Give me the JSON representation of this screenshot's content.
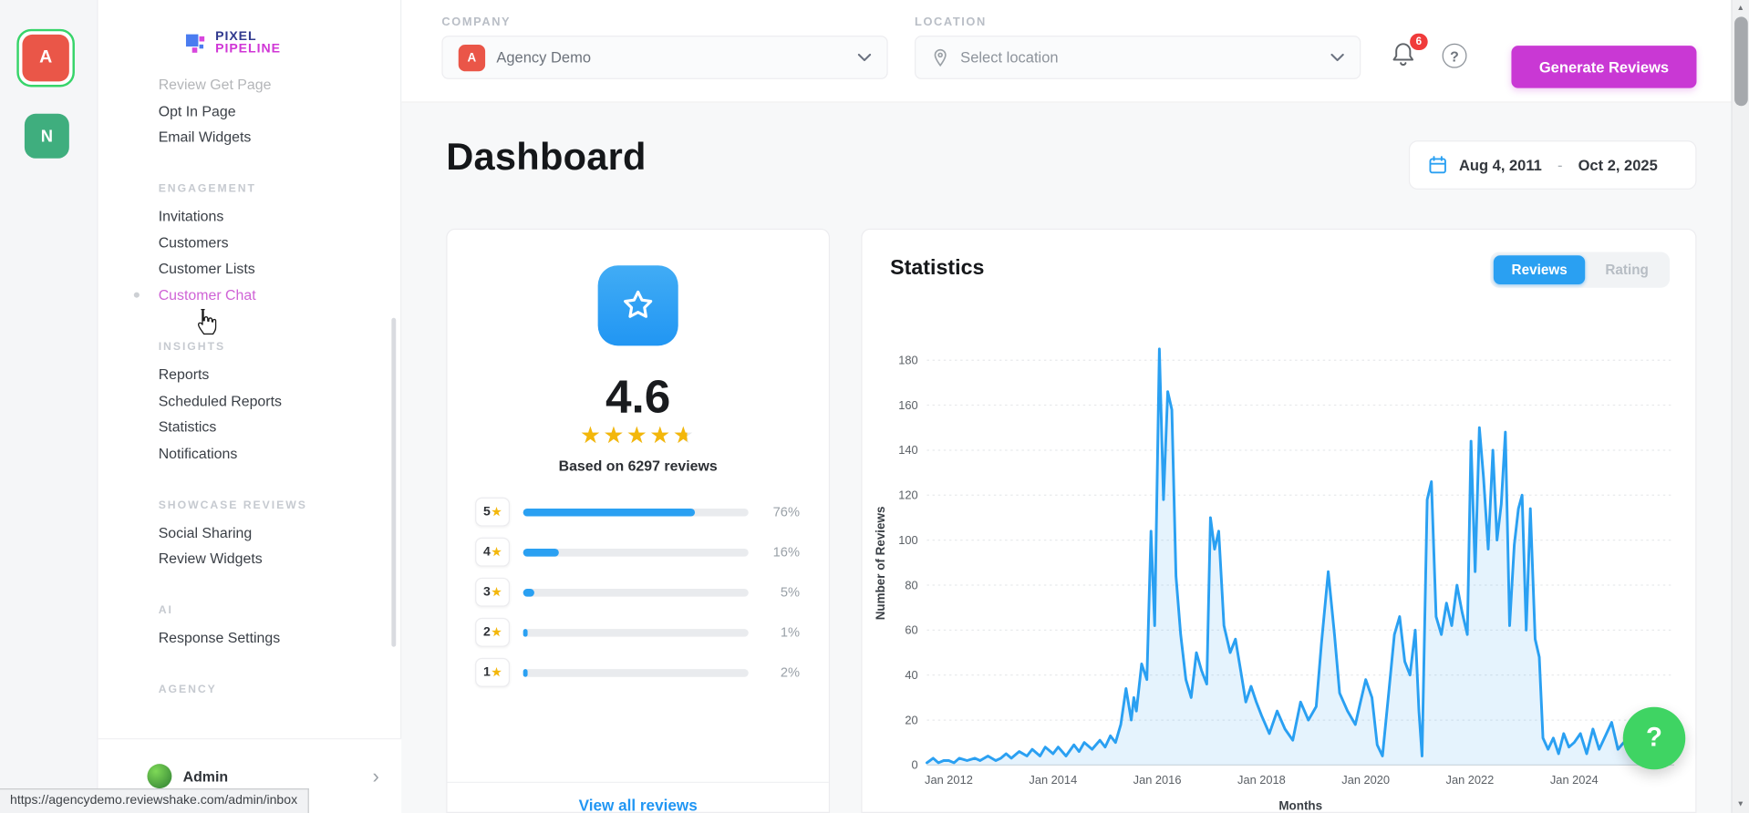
{
  "colors": {
    "accent_blue": "#2aa0f2",
    "accent_magenta": "#c938d4",
    "star_yellow": "#f3b70b",
    "badge_red": "#f03b3b",
    "help_green": "#3fd463",
    "avatar_red": "#ea5648",
    "avatar_green": "#3fae7e"
  },
  "icons": {
    "chevron_right": "›",
    "scroll_up": "▲",
    "scroll_down": "▼",
    "star": "★",
    "stars_row": "★★★★★"
  },
  "rail": {
    "avatars": [
      {
        "label": "A",
        "selected": true
      },
      {
        "label": "N",
        "selected": false
      }
    ]
  },
  "sidebar": {
    "logo": {
      "line1": "PIXEL",
      "line2": "PIPELINE"
    },
    "sections": [
      {
        "header": "",
        "items": [
          {
            "label": "Review Get Page",
            "faded": true
          },
          {
            "label": "Opt In Page"
          },
          {
            "label": "Email Widgets"
          }
        ]
      },
      {
        "header": "ENGAGEMENT",
        "items": [
          {
            "label": "Invitations"
          },
          {
            "label": "Customers"
          },
          {
            "label": "Customer Lists"
          },
          {
            "label": "Customer Chat",
            "active": true
          }
        ]
      },
      {
        "header": "INSIGHTS",
        "items": [
          {
            "label": "Reports"
          },
          {
            "label": "Scheduled Reports"
          },
          {
            "label": "Statistics"
          },
          {
            "label": "Notifications"
          }
        ]
      },
      {
        "header": "SHOWCASE REVIEWS",
        "items": [
          {
            "label": "Social Sharing"
          },
          {
            "label": "Review Widgets"
          }
        ]
      },
      {
        "header": "AI",
        "items": [
          {
            "label": "Response Settings"
          }
        ]
      },
      {
        "header": "AGENCY",
        "items": []
      }
    ],
    "footer": {
      "label": "Admin"
    }
  },
  "topbar": {
    "company": {
      "label": "COMPANY",
      "avatar": "A",
      "value": "Agency Demo"
    },
    "location": {
      "label": "LOCATION",
      "placeholder": "Select location"
    },
    "notifications_badge": "6",
    "help_label": "?",
    "generate_button": "Generate Reviews"
  },
  "page": {
    "title": "Dashboard",
    "date_range": {
      "start": "Aug 4, 2011",
      "separator": "-",
      "end": "Oct 2, 2025"
    }
  },
  "rating_card": {
    "score": "4.6",
    "stars_percent": 92,
    "based_on": "Based on 6297 reviews",
    "breakdown": [
      {
        "stars": "5",
        "percent": "76%",
        "value": 76
      },
      {
        "stars": "4",
        "percent": "16%",
        "value": 16
      },
      {
        "stars": "3",
        "percent": "5%",
        "value": 5
      },
      {
        "stars": "2",
        "percent": "1%",
        "value": 1
      },
      {
        "stars": "1",
        "percent": "2%",
        "value": 2
      }
    ],
    "view_all": "View all reviews"
  },
  "stats_card": {
    "title": "Statistics",
    "tabs": [
      {
        "label": "Reviews",
        "active": true
      },
      {
        "label": "Rating",
        "active": false
      }
    ]
  },
  "chart_data": {
    "type": "line",
    "title": "Statistics — Reviews over time",
    "ylabel": "Number of Reviews",
    "xlabel": "Months",
    "x_range": [
      2011.58,
      2025.92
    ],
    "ylim": [
      0,
      190
    ],
    "y_ticks": [
      0,
      20,
      40,
      60,
      80,
      100,
      120,
      140,
      160,
      180
    ],
    "x_ticks": [
      {
        "x": 2012,
        "label": "Jan 2012"
      },
      {
        "x": 2014,
        "label": "Jan 2014"
      },
      {
        "x": 2016,
        "label": "Jan 2016"
      },
      {
        "x": 2018,
        "label": "Jan 2018"
      },
      {
        "x": 2020,
        "label": "Jan 2020"
      },
      {
        "x": 2022,
        "label": "Jan 2022"
      },
      {
        "x": 2024,
        "label": "Jan 2024"
      }
    ],
    "points": [
      [
        2011.58,
        1
      ],
      [
        2011.7,
        3
      ],
      [
        2011.8,
        1
      ],
      [
        2011.9,
        2
      ],
      [
        2012.0,
        2
      ],
      [
        2012.1,
        1
      ],
      [
        2012.2,
        3
      ],
      [
        2012.35,
        2
      ],
      [
        2012.5,
        3
      ],
      [
        2012.6,
        2
      ],
      [
        2012.75,
        4
      ],
      [
        2012.9,
        2
      ],
      [
        2013.0,
        3
      ],
      [
        2013.1,
        5
      ],
      [
        2013.2,
        3
      ],
      [
        2013.35,
        6
      ],
      [
        2013.5,
        4
      ],
      [
        2013.6,
        7
      ],
      [
        2013.75,
        4
      ],
      [
        2013.85,
        8
      ],
      [
        2014.0,
        5
      ],
      [
        2014.1,
        8
      ],
      [
        2014.25,
        4
      ],
      [
        2014.4,
        9
      ],
      [
        2014.5,
        6
      ],
      [
        2014.6,
        10
      ],
      [
        2014.75,
        7
      ],
      [
        2014.9,
        11
      ],
      [
        2015.0,
        8
      ],
      [
        2015.1,
        13
      ],
      [
        2015.2,
        10
      ],
      [
        2015.3,
        18
      ],
      [
        2015.4,
        34
      ],
      [
        2015.5,
        20
      ],
      [
        2015.55,
        30
      ],
      [
        2015.6,
        24
      ],
      [
        2015.7,
        45
      ],
      [
        2015.8,
        38
      ],
      [
        2015.88,
        104
      ],
      [
        2015.95,
        62
      ],
      [
        2016.04,
        185
      ],
      [
        2016.12,
        118
      ],
      [
        2016.2,
        166
      ],
      [
        2016.28,
        158
      ],
      [
        2016.36,
        84
      ],
      [
        2016.45,
        58
      ],
      [
        2016.55,
        38
      ],
      [
        2016.65,
        30
      ],
      [
        2016.75,
        50
      ],
      [
        2016.85,
        42
      ],
      [
        2016.95,
        36
      ],
      [
        2017.02,
        110
      ],
      [
        2017.1,
        96
      ],
      [
        2017.18,
        104
      ],
      [
        2017.28,
        62
      ],
      [
        2017.4,
        50
      ],
      [
        2017.5,
        56
      ],
      [
        2017.6,
        42
      ],
      [
        2017.7,
        28
      ],
      [
        2017.8,
        35
      ],
      [
        2017.9,
        28
      ],
      [
        2018.0,
        22
      ],
      [
        2018.15,
        14
      ],
      [
        2018.3,
        24
      ],
      [
        2018.45,
        16
      ],
      [
        2018.6,
        11
      ],
      [
        2018.75,
        28
      ],
      [
        2018.9,
        20
      ],
      [
        2019.05,
        26
      ],
      [
        2019.15,
        54
      ],
      [
        2019.28,
        86
      ],
      [
        2019.4,
        58
      ],
      [
        2019.5,
        32
      ],
      [
        2019.65,
        24
      ],
      [
        2019.8,
        18
      ],
      [
        2019.9,
        28
      ],
      [
        2020.0,
        38
      ],
      [
        2020.12,
        30
      ],
      [
        2020.22,
        9
      ],
      [
        2020.32,
        4
      ],
      [
        2020.45,
        34
      ],
      [
        2020.55,
        58
      ],
      [
        2020.65,
        66
      ],
      [
        2020.75,
        46
      ],
      [
        2020.85,
        40
      ],
      [
        2020.95,
        60
      ],
      [
        2021.02,
        24
      ],
      [
        2021.08,
        4
      ],
      [
        2021.18,
        118
      ],
      [
        2021.26,
        126
      ],
      [
        2021.35,
        66
      ],
      [
        2021.45,
        58
      ],
      [
        2021.55,
        72
      ],
      [
        2021.65,
        62
      ],
      [
        2021.75,
        80
      ],
      [
        2021.85,
        68
      ],
      [
        2021.95,
        58
      ],
      [
        2022.02,
        144
      ],
      [
        2022.1,
        86
      ],
      [
        2022.18,
        150
      ],
      [
        2022.26,
        128
      ],
      [
        2022.35,
        96
      ],
      [
        2022.44,
        140
      ],
      [
        2022.52,
        100
      ],
      [
        2022.6,
        116
      ],
      [
        2022.68,
        148
      ],
      [
        2022.76,
        62
      ],
      [
        2022.85,
        98
      ],
      [
        2022.93,
        114
      ],
      [
        2023.0,
        120
      ],
      [
        2023.08,
        60
      ],
      [
        2023.16,
        114
      ],
      [
        2023.25,
        56
      ],
      [
        2023.33,
        48
      ],
      [
        2023.4,
        12
      ],
      [
        2023.5,
        7
      ],
      [
        2023.6,
        12
      ],
      [
        2023.7,
        5
      ],
      [
        2023.8,
        14
      ],
      [
        2023.9,
        8
      ],
      [
        2024.0,
        10
      ],
      [
        2024.12,
        14
      ],
      [
        2024.24,
        5
      ],
      [
        2024.36,
        16
      ],
      [
        2024.48,
        7
      ],
      [
        2024.6,
        13
      ],
      [
        2024.72,
        19
      ],
      [
        2024.84,
        7
      ],
      [
        2024.95,
        10
      ],
      [
        2025.1,
        5
      ],
      [
        2025.25,
        9
      ],
      [
        2025.4,
        4
      ],
      [
        2025.55,
        7
      ],
      [
        2025.7,
        5
      ],
      [
        2025.85,
        6
      ]
    ]
  },
  "help_fab": {
    "label": "?"
  },
  "statusbar": {
    "url": "https://agencydemo.reviewshake.com/admin/inbox"
  }
}
